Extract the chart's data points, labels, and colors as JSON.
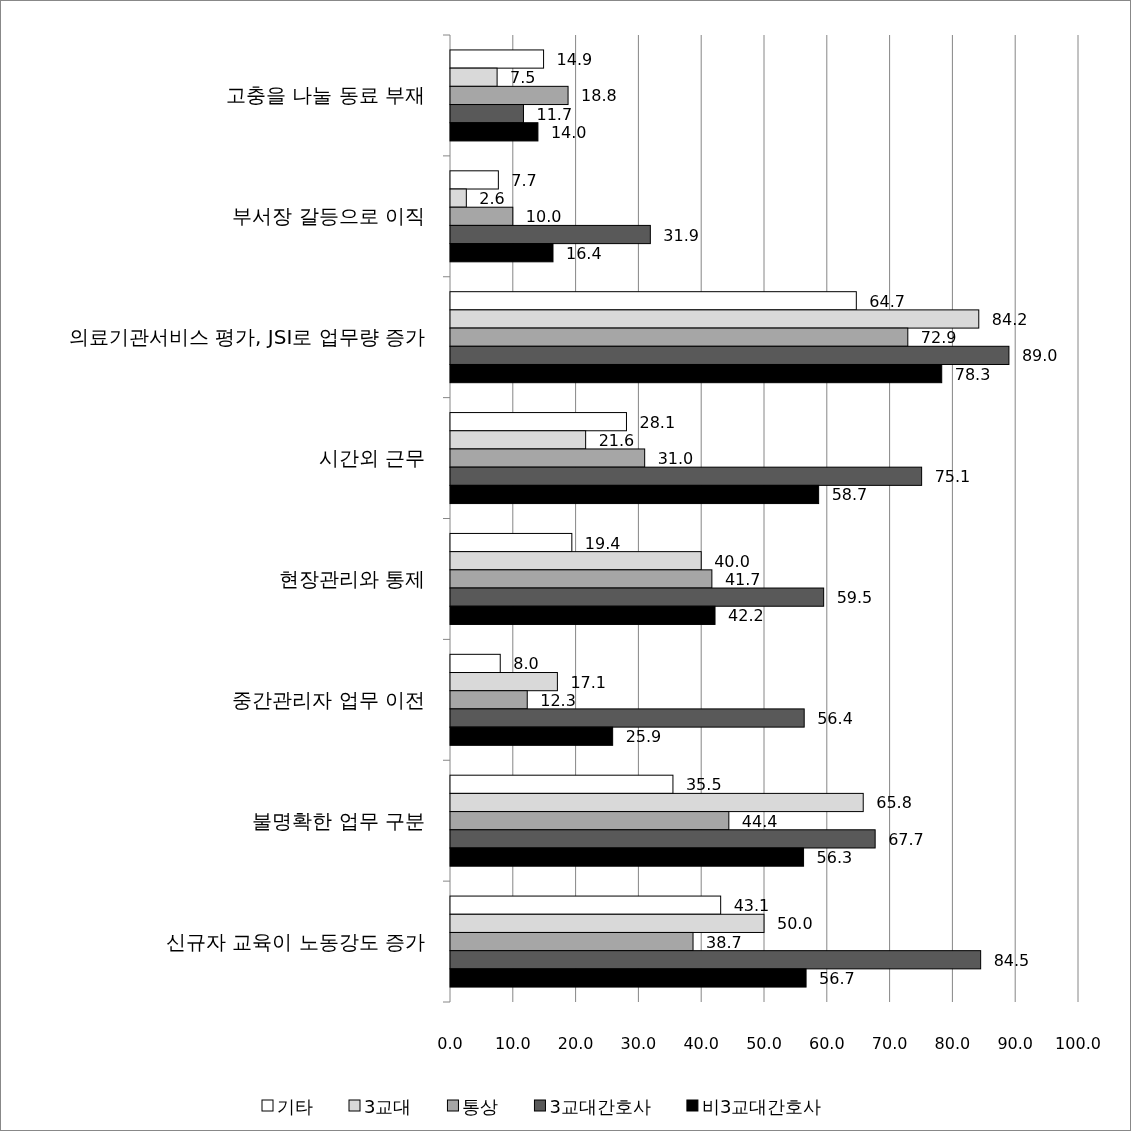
{
  "chart_data": {
    "type": "bar",
    "orientation": "horizontal",
    "categories": [
      "고충을 나눌 동료 부재",
      "부서장 갈등으로 이직",
      "의료기관서비스 평가, JSI로 업무량 증가",
      "시간외 근무",
      "현장관리와 통제",
      "중간관리자 업무 이전",
      "불명확한 업무 구분",
      "신규자 교육이 노동강도 증가"
    ],
    "series": [
      {
        "name": "기타",
        "color": "#ffffff",
        "values": [
          14.9,
          7.7,
          64.7,
          28.1,
          19.4,
          8.0,
          35.5,
          43.1
        ],
        "value_labels": [
          "14.9",
          "7.7",
          "64.7",
          "28.1",
          "19.4",
          "8.0",
          "35.5",
          "43.1"
        ]
      },
      {
        "name": "3교대",
        "color": "#d9d9d9",
        "values": [
          7.5,
          2.6,
          84.2,
          21.6,
          40.0,
          17.1,
          65.8,
          50.0
        ],
        "value_labels": [
          "7.5",
          "2.6",
          "84.2",
          "21.6",
          "40.0",
          "17.1",
          "65.8",
          "50.0"
        ]
      },
      {
        "name": "통상",
        "color": "#a6a6a6",
        "values": [
          18.8,
          10.0,
          72.9,
          31.0,
          41.7,
          12.3,
          44.4,
          38.7
        ],
        "value_labels": [
          "18.8",
          "10.0",
          "72.9",
          "31.0",
          "41.7",
          "12.3",
          "44.4",
          "38.7"
        ]
      },
      {
        "name": "3교대간호사",
        "color": "#595959",
        "values": [
          11.7,
          31.9,
          89.0,
          75.1,
          59.5,
          56.4,
          67.7,
          84.5
        ],
        "value_labels": [
          "11.7",
          "31.9",
          "89.0",
          "75.1",
          "59.5",
          "56.4",
          "67.7",
          "84.5"
        ]
      },
      {
        "name": "비3교대간호사",
        "color": "#000000",
        "values": [
          14.0,
          16.4,
          78.3,
          58.7,
          42.2,
          25.9,
          56.3,
          56.7
        ],
        "value_labels": [
          "14.0",
          "16.4",
          "78.3",
          "58.7",
          "42.2",
          "25.9",
          "56.3",
          "56.7"
        ]
      }
    ],
    "xlim": [
      0,
      100
    ],
    "xticks": [
      {
        "value": 0,
        "label": "0.0"
      },
      {
        "value": 10,
        "label": "10.0"
      },
      {
        "value": 20,
        "label": "20.0"
      },
      {
        "value": 30,
        "label": "30.0"
      },
      {
        "value": 40,
        "label": "40.0"
      },
      {
        "value": 50,
        "label": "50.0"
      },
      {
        "value": 60,
        "label": "60.0"
      },
      {
        "value": 70,
        "label": "70.0"
      },
      {
        "value": 80,
        "label": "80.0"
      },
      {
        "value": 90,
        "label": "90.0"
      },
      {
        "value": 100,
        "label": "100.0"
      }
    ],
    "grid": "x",
    "legend": "bottom"
  }
}
